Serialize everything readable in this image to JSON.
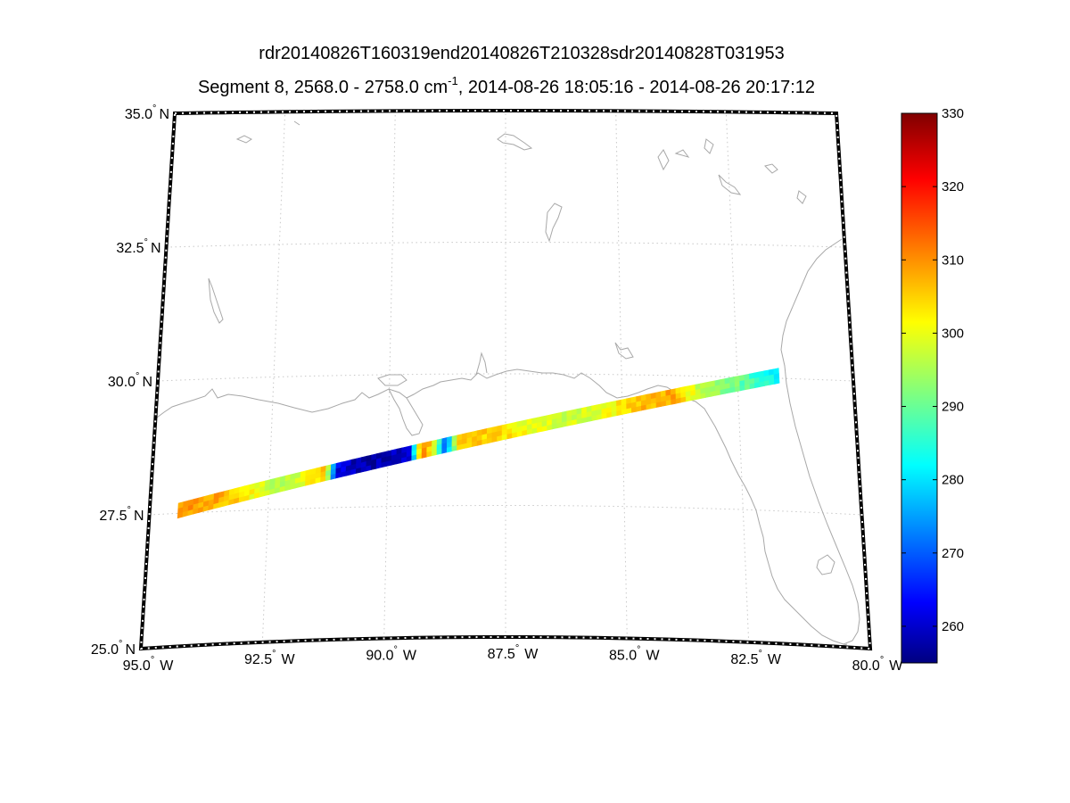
{
  "title": {
    "line1": "rdr20140826T160319end20140826T210328sdr20140828T031953",
    "line2_prefix": "Segment 8, 2568.0 - 2758.0 cm",
    "line2_sup": "-1",
    "line2_suffix": ", 2014-08-26 18:05:16 - 2014-08-26 20:17:12"
  },
  "map": {
    "lon_range": [
      -95.0,
      -80.0
    ],
    "lat_range": [
      25.0,
      35.0
    ],
    "gridlines": true,
    "lat_ticks": [
      {
        "value": 35.0,
        "label": "35.0",
        "suffix": "N"
      },
      {
        "value": 32.5,
        "label": "32.5",
        "suffix": "N"
      },
      {
        "value": 30.0,
        "label": "30.0",
        "suffix": "N"
      },
      {
        "value": 27.5,
        "label": "27.5",
        "suffix": "N"
      },
      {
        "value": 25.0,
        "label": "25.0",
        "suffix": "N"
      }
    ],
    "lon_ticks": [
      {
        "value": -95.0,
        "label": "95.0",
        "suffix": "W"
      },
      {
        "value": -92.5,
        "label": "92.5",
        "suffix": "W"
      },
      {
        "value": -90.0,
        "label": "90.0",
        "suffix": "W"
      },
      {
        "value": -87.5,
        "label": "87.5",
        "suffix": "W"
      },
      {
        "value": -85.0,
        "label": "85.0",
        "suffix": "W"
      },
      {
        "value": -82.5,
        "label": "82.5",
        "suffix": "W"
      },
      {
        "value": -80.0,
        "label": "80.0",
        "suffix": "W"
      }
    ],
    "coast_color": "#a8a8a8",
    "grid_color": "#c8c8c8"
  },
  "swath": {
    "start": {
      "lon": -94.4,
      "lat": 27.55
    },
    "end": {
      "lon": -81.6,
      "lat": 30.05
    },
    "width_deg": 0.28,
    "value_profile": [
      {
        "t": 0.0,
        "v": 310
      },
      {
        "t": 0.06,
        "v": 308
      },
      {
        "t": 0.1,
        "v": 304
      },
      {
        "t": 0.13,
        "v": 300
      },
      {
        "t": 0.17,
        "v": 295
      },
      {
        "t": 0.21,
        "v": 300
      },
      {
        "t": 0.24,
        "v": 307
      },
      {
        "t": 0.26,
        "v": 262
      },
      {
        "t": 0.3,
        "v": 258
      },
      {
        "t": 0.35,
        "v": 259
      },
      {
        "t": 0.38,
        "v": 262
      },
      {
        "t": 0.4,
        "v": 312
      },
      {
        "t": 0.42,
        "v": 302
      },
      {
        "t": 0.44,
        "v": 268
      },
      {
        "t": 0.46,
        "v": 304
      },
      {
        "t": 0.52,
        "v": 305
      },
      {
        "t": 0.58,
        "v": 300
      },
      {
        "t": 0.64,
        "v": 298
      },
      {
        "t": 0.7,
        "v": 299
      },
      {
        "t": 0.76,
        "v": 306
      },
      {
        "t": 0.82,
        "v": 308
      },
      {
        "t": 0.86,
        "v": 298
      },
      {
        "t": 0.92,
        "v": 292
      },
      {
        "t": 0.97,
        "v": 285
      },
      {
        "t": 1.0,
        "v": 282
      }
    ]
  },
  "colorbar": {
    "min": 255,
    "max": 330,
    "colormap": "jet",
    "ticks": [
      {
        "value": 260,
        "label": "260"
      },
      {
        "value": 270,
        "label": "270"
      },
      {
        "value": 280,
        "label": "280"
      },
      {
        "value": 290,
        "label": "290"
      },
      {
        "value": 300,
        "label": "300"
      },
      {
        "value": 310,
        "label": "310"
      },
      {
        "value": 320,
        "label": "320"
      },
      {
        "value": 330,
        "label": "330"
      }
    ]
  }
}
